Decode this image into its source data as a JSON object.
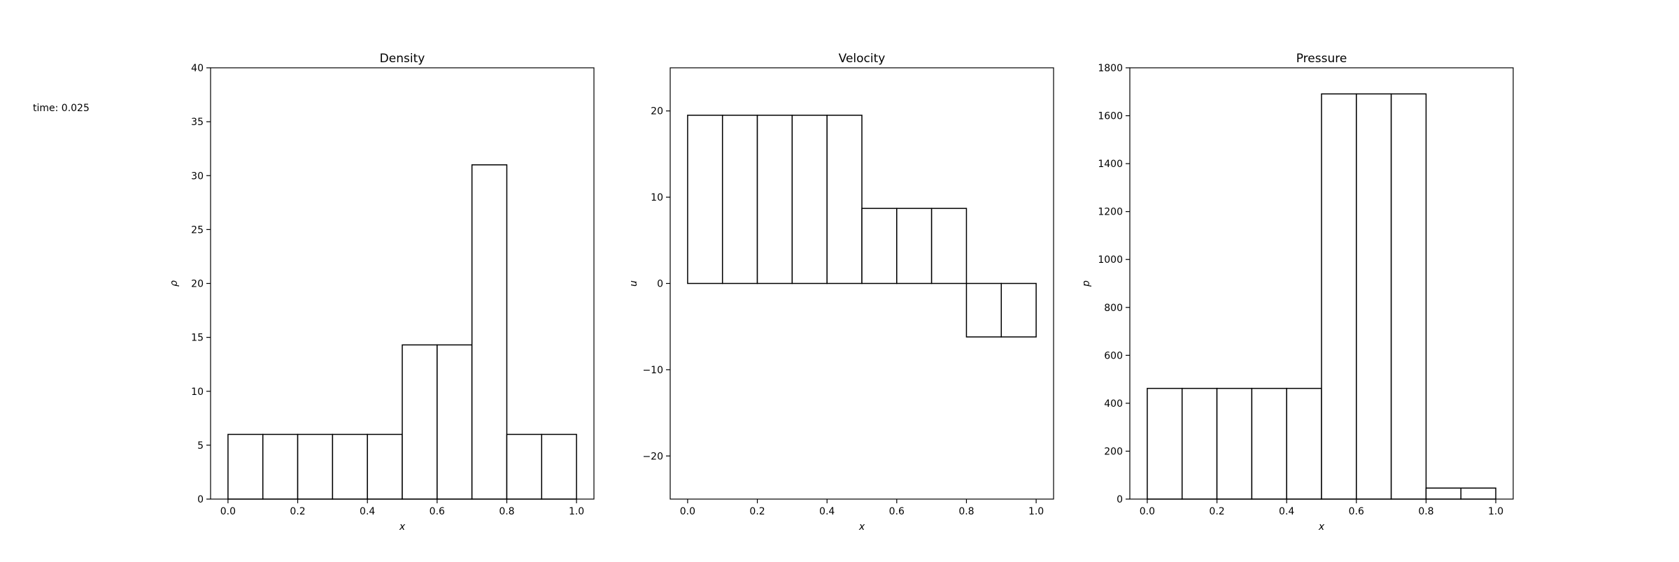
{
  "time_label": "time: 0.025",
  "chart_data": [
    {
      "type": "bar",
      "title": "Density",
      "xlabel": "x",
      "ylabel": "ρ",
      "xlim": [
        -0.05,
        1.05
      ],
      "ylim": [
        0,
        40
      ],
      "xticks": [
        0.0,
        0.2,
        0.4,
        0.6,
        0.8,
        1.0
      ],
      "xtick_labels": [
        "0.0",
        "0.2",
        "0.4",
        "0.6",
        "0.8",
        "1.0"
      ],
      "yticks": [
        0,
        5,
        10,
        15,
        20,
        25,
        30,
        35,
        40
      ],
      "ytick_labels": [
        "0",
        "5",
        "10",
        "15",
        "20",
        "25",
        "30",
        "35",
        "40"
      ],
      "bin_edges": [
        0.0,
        0.1,
        0.2,
        0.3,
        0.4,
        0.5,
        0.6,
        0.7,
        0.8,
        0.9,
        1.0
      ],
      "values": [
        6.0,
        6.0,
        6.0,
        6.0,
        6.0,
        14.3,
        14.3,
        31.0,
        6.0,
        6.0
      ],
      "bar_fill": "#ffffff",
      "bar_edge": "#000000"
    },
    {
      "type": "bar",
      "title": "Velocity",
      "xlabel": "x",
      "ylabel": "u",
      "xlim": [
        -0.05,
        1.05
      ],
      "ylim": [
        -25,
        25
      ],
      "xticks": [
        0.0,
        0.2,
        0.4,
        0.6,
        0.8,
        1.0
      ],
      "xtick_labels": [
        "0.0",
        "0.2",
        "0.4",
        "0.6",
        "0.8",
        "1.0"
      ],
      "yticks": [
        -20,
        -10,
        0,
        10,
        20
      ],
      "ytick_labels": [
        "−20",
        "−10",
        "0",
        "10",
        "20"
      ],
      "bin_edges": [
        0.0,
        0.1,
        0.2,
        0.3,
        0.4,
        0.5,
        0.6,
        0.7,
        0.8,
        0.9,
        1.0
      ],
      "values": [
        19.5,
        19.5,
        19.5,
        19.5,
        19.5,
        8.7,
        8.7,
        8.7,
        -6.2,
        -6.2
      ],
      "bar_fill": "#ffffff",
      "bar_edge": "#000000"
    },
    {
      "type": "bar",
      "title": "Pressure",
      "xlabel": "x",
      "ylabel": "p",
      "xlim": [
        -0.05,
        1.05
      ],
      "ylim": [
        0,
        1800
      ],
      "xticks": [
        0.0,
        0.2,
        0.4,
        0.6,
        0.8,
        1.0
      ],
      "xtick_labels": [
        "0.0",
        "0.2",
        "0.4",
        "0.6",
        "0.8",
        "1.0"
      ],
      "yticks": [
        0,
        200,
        400,
        600,
        800,
        1000,
        1200,
        1400,
        1600,
        1800
      ],
      "ytick_labels": [
        "0",
        "200",
        "400",
        "600",
        "800",
        "1000",
        "1200",
        "1400",
        "1600",
        "1800"
      ],
      "bin_edges": [
        0.0,
        0.1,
        0.2,
        0.3,
        0.4,
        0.5,
        0.6,
        0.7,
        0.8,
        0.9,
        1.0
      ],
      "values": [
        462,
        462,
        462,
        462,
        462,
        1691,
        1691,
        1691,
        46,
        46
      ],
      "bar_fill": "#ffffff",
      "bar_edge": "#000000"
    }
  ]
}
